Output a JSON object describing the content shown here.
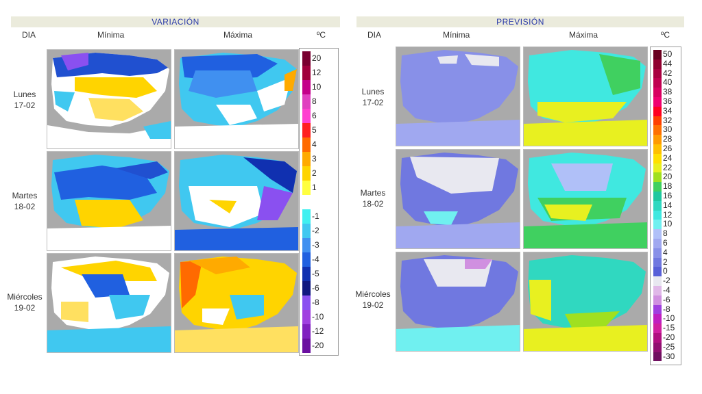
{
  "variacion": {
    "title": "VARIACIÓN",
    "col_dia": "DIA",
    "col_min": "Mínima",
    "col_max": "Máxima",
    "unit": "ºC",
    "legend": [
      {
        "label": "20",
        "color": "#7a0030"
      },
      {
        "label": "12",
        "color": "#a0003c"
      },
      {
        "label": "10",
        "color": "#c4008a"
      },
      {
        "label": "8",
        "color": "#e040c0"
      },
      {
        "label": "6",
        "color": "#ff40d0"
      },
      {
        "label": "5",
        "color": "#ff2020"
      },
      {
        "label": "4",
        "color": "#ff6a00"
      },
      {
        "label": "3",
        "color": "#ffaa00"
      },
      {
        "label": "2",
        "color": "#ffd400"
      },
      {
        "label": "1",
        "color": "#ffff40"
      },
      {
        "label": "",
        "color": "#ffffff"
      },
      {
        "label": "-1",
        "color": "#40f0f0"
      },
      {
        "label": "-2",
        "color": "#40c8f0"
      },
      {
        "label": "-3",
        "color": "#4090f0"
      },
      {
        "label": "-4",
        "color": "#2060e0"
      },
      {
        "label": "-5",
        "color": "#1030b0"
      },
      {
        "label": "-6",
        "color": "#101880"
      },
      {
        "label": "-8",
        "color": "#8a50f0"
      },
      {
        "label": "-10",
        "color": "#a040e0"
      },
      {
        "label": "-12",
        "color": "#8020c0"
      },
      {
        "label": "-20",
        "color": "#6a10a0"
      }
    ]
  },
  "prevision": {
    "title": "PREVISIÓN",
    "col_dia": "DIA",
    "col_min": "Mínima",
    "col_max": "Máxima",
    "unit": "ºC",
    "legend": [
      {
        "label": "50",
        "color": "#6a0020"
      },
      {
        "label": "44",
        "color": "#900030"
      },
      {
        "label": "42",
        "color": "#a80040"
      },
      {
        "label": "40",
        "color": "#c00050"
      },
      {
        "label": "38",
        "color": "#d80060"
      },
      {
        "label": "36",
        "color": "#f00070"
      },
      {
        "label": "34",
        "color": "#ff0020"
      },
      {
        "label": "32",
        "color": "#ff4000"
      },
      {
        "label": "30",
        "color": "#ff7000"
      },
      {
        "label": "28",
        "color": "#ff9a00"
      },
      {
        "label": "26",
        "color": "#ffc000"
      },
      {
        "label": "24",
        "color": "#ffe000"
      },
      {
        "label": "22",
        "color": "#e8f020"
      },
      {
        "label": "20",
        "color": "#a0e020"
      },
      {
        "label": "18",
        "color": "#40d060"
      },
      {
        "label": "16",
        "color": "#20c8a0"
      },
      {
        "label": "14",
        "color": "#30d8c0"
      },
      {
        "label": "12",
        "color": "#40e8e0"
      },
      {
        "label": "10",
        "color": "#70f0f0"
      },
      {
        "label": "8",
        "color": "#b0c0f8"
      },
      {
        "label": "6",
        "color": "#a0a8f0"
      },
      {
        "label": "4",
        "color": "#8890e8"
      },
      {
        "label": "2",
        "color": "#7078e0"
      },
      {
        "label": "0",
        "color": "#5860d8"
      },
      {
        "label": "-2",
        "color": "#e8e8f0"
      },
      {
        "label": "-4",
        "color": "#e0b8e8"
      },
      {
        "label": "-6",
        "color": "#d090e0"
      },
      {
        "label": "-8",
        "color": "#a040e0"
      },
      {
        "label": "-10",
        "color": "#c020c0"
      },
      {
        "label": "-15",
        "color": "#d020a0"
      },
      {
        "label": "-20",
        "color": "#b01080"
      },
      {
        "label": "-25",
        "color": "#901070"
      },
      {
        "label": "-30",
        "color": "#701060"
      }
    ]
  },
  "days": [
    {
      "name": "Lunes",
      "date": "17-02"
    },
    {
      "name": "Martes",
      "date": "18-02"
    },
    {
      "name": "Miércoles",
      "date": "19-02"
    }
  ]
}
